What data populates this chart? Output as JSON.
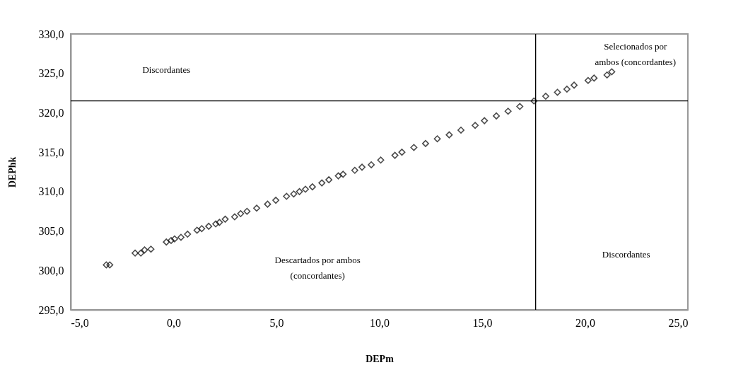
{
  "chart_data": {
    "type": "scatter",
    "xlabel": "DEPm",
    "ylabel": "DEPhk",
    "marker": "diamond",
    "grid": false,
    "xlim": [
      -5,
      25
    ],
    "ylim": [
      295,
      330
    ],
    "xticks": [
      {
        "value": -5,
        "label": "-5,0"
      },
      {
        "value": 0,
        "label": "0,0"
      },
      {
        "value": 5,
        "label": "5,0"
      },
      {
        "value": 10,
        "label": "10,0"
      },
      {
        "value": 15,
        "label": "15,0"
      },
      {
        "value": 20,
        "label": "20,0"
      },
      {
        "value": 25,
        "label": "25,0"
      }
    ],
    "yticks": [
      {
        "value": 295,
        "label": "295,0"
      },
      {
        "value": 300,
        "label": "300,0"
      },
      {
        "value": 305,
        "label": "305,0"
      },
      {
        "value": 310,
        "label": "310,0"
      },
      {
        "value": 315,
        "label": "315,0"
      },
      {
        "value": 320,
        "label": "320,0"
      },
      {
        "value": 325,
        "label": "325,0"
      },
      {
        "value": 330,
        "label": "330,0"
      }
    ],
    "series": [
      {
        "color": "#000000",
        "x": [
          -3.27,
          -3.1,
          -1.87,
          -1.59,
          -1.41,
          -1.1,
          -0.35,
          -0.12,
          0.05,
          0.36,
          0.68,
          1.14,
          1.37,
          1.71,
          2.05,
          2.23,
          2.51,
          2.97,
          3.26,
          3.57,
          4.04,
          4.57,
          4.97,
          5.49,
          5.84,
          6.12,
          6.41,
          6.75,
          7.21,
          7.55,
          8.01,
          8.24,
          8.81,
          9.16,
          9.61,
          10.07,
          10.76,
          11.1,
          11.68,
          12.25,
          12.82,
          13.4,
          13.97,
          14.66,
          15.11,
          15.69,
          16.26,
          16.83,
          17.52,
          18.09,
          18.66,
          19.12,
          19.47,
          20.15,
          20.44,
          21.07,
          21.3
        ],
        "values": [
          300.7,
          300.7,
          302.2,
          302.2,
          302.6,
          302.7,
          303.6,
          303.8,
          304.0,
          304.2,
          304.6,
          305.1,
          305.3,
          305.6,
          305.9,
          306.1,
          306.5,
          306.8,
          307.2,
          307.5,
          307.9,
          308.4,
          308.9,
          309.4,
          309.7,
          310.0,
          310.3,
          310.6,
          311.1,
          311.5,
          312.0,
          312.2,
          312.7,
          313.1,
          313.4,
          314.0,
          314.6,
          315.0,
          315.6,
          316.1,
          316.7,
          317.2,
          317.8,
          318.4,
          319.0,
          319.6,
          320.2,
          320.8,
          321.5,
          322.1,
          322.6,
          323.0,
          323.5,
          324.1,
          324.4,
          324.8,
          325.2
        ]
      }
    ],
    "ref_lines": [
      {
        "axis": "x",
        "value": 17.6,
        "color": "#000000"
      },
      {
        "axis": "y",
        "value": 321.5,
        "color": "#000000"
      }
    ],
    "annotations": [
      "Discordantes",
      "Selecionados por\nambos (concordantes)",
      "Descartados por ambos\n(concordantes)",
      "Discordantes"
    ]
  }
}
